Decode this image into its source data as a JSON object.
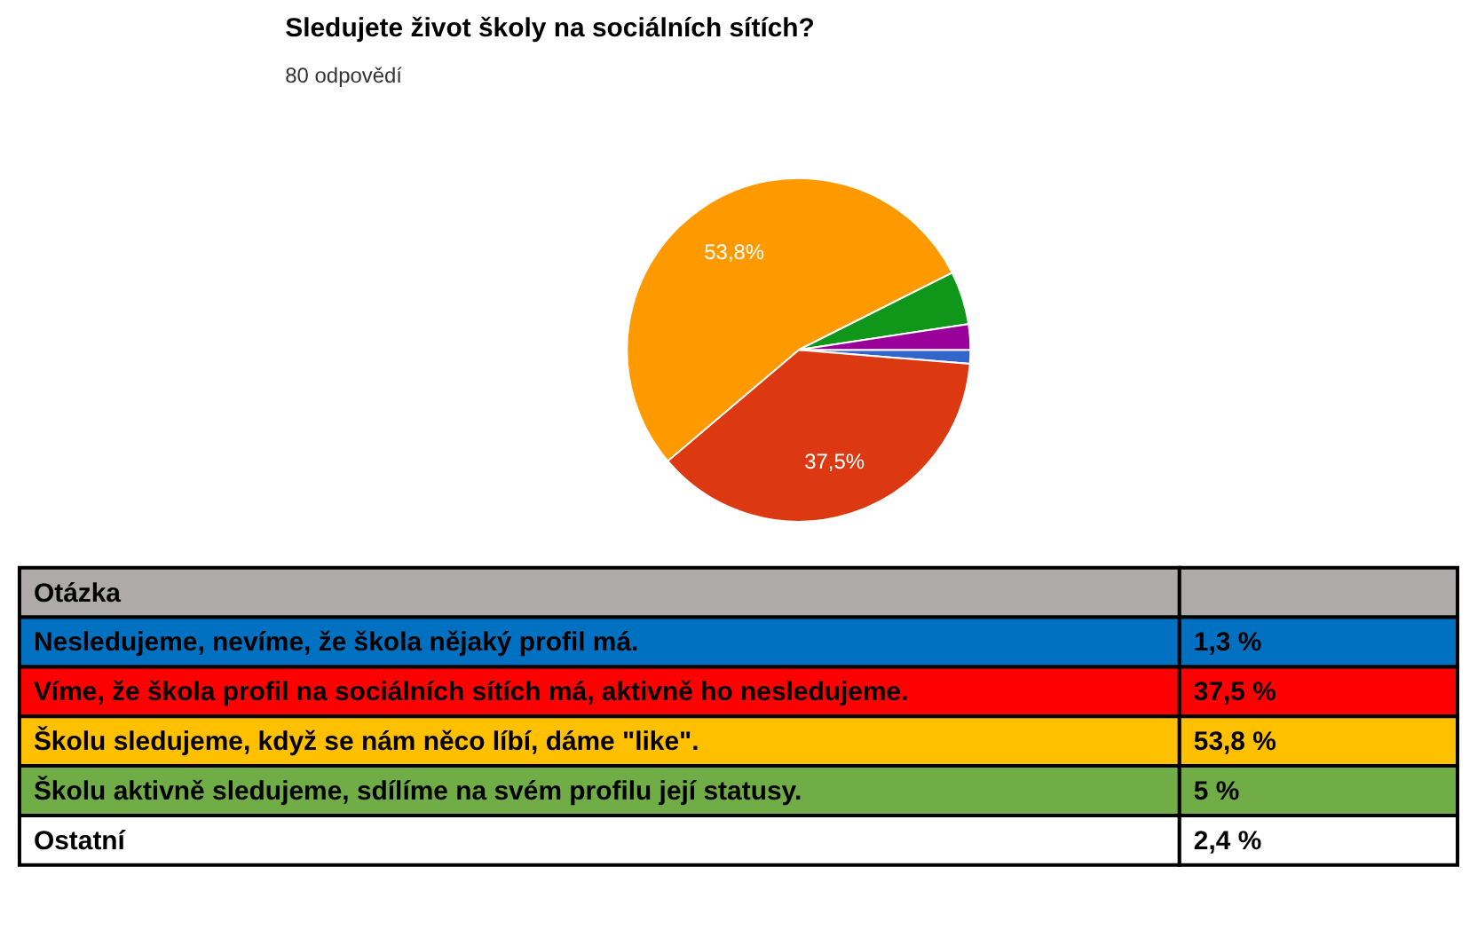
{
  "chart_data": [
    {
      "type": "pie",
      "title": "Sledujete život školy na sociálních sítích?",
      "subtitle": "80 odpovědí",
      "categories": [
        null,
        null,
        null,
        null,
        null
      ],
      "values": [
        1.3,
        37.5,
        53.8,
        5,
        2.4
      ],
      "colors": [
        "#3366cc",
        "#dc3912",
        "#ff9900",
        "#109618",
        "#990099"
      ],
      "value_labels": [
        null,
        "37,5%",
        "53,8%",
        null,
        null
      ]
    },
    {
      "type": "other",
      "title": "Otázka",
      "categories": [
        "Nesledujeme, nevíme, že škola nějaký profil má.",
        "Víme, že škola profil na sociálních sítích má, aktivně ho nesledujeme.",
        "Školu sledujeme, když se nám něco líbí, dáme \"like\".",
        "Školu aktivně sledujeme, sdílíme na svém profilu její statusy.",
        "Ostatní"
      ],
      "values": [
        1.3,
        37.5,
        53.8,
        5,
        2.4
      ],
      "value_labels": [
        "1,3 %",
        "37,5 %",
        "53,8 %",
        "5 %",
        "2,4 %"
      ],
      "colors": [
        "#0070c0",
        "#ff0000",
        "#ffc000",
        "#70ad47",
        "#ffffff"
      ]
    }
  ]
}
